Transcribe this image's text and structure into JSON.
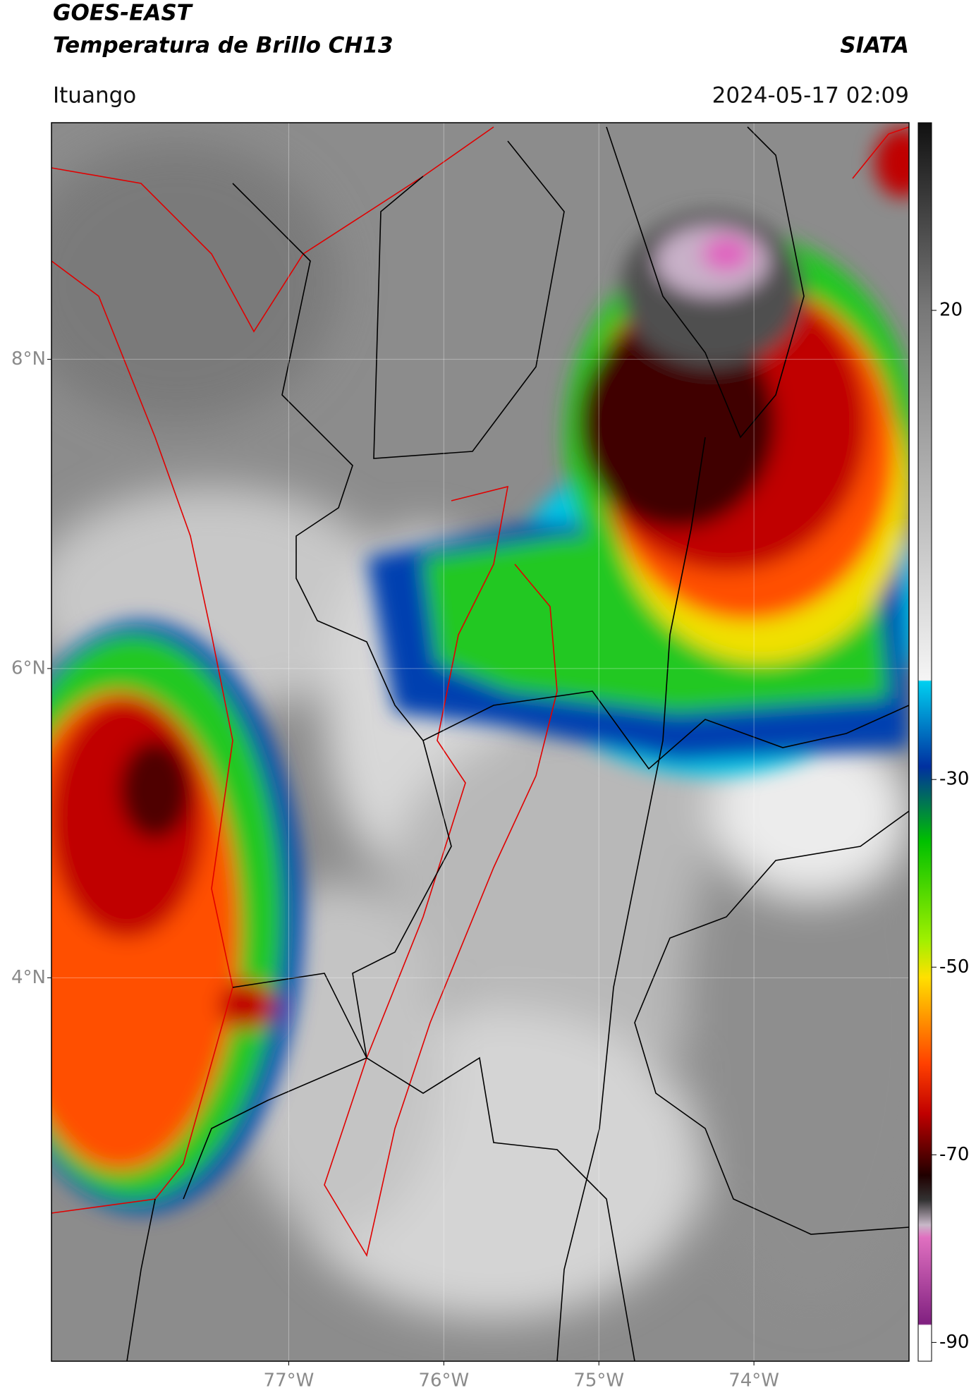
{
  "header": {
    "title": "GOES-EAST",
    "subtitle": "Temperatura de Brillo CH13",
    "source": "SIATA",
    "region": "Ituango",
    "datetime": "2024-05-17 02:09"
  },
  "map": {
    "xlim": [
      -78.53,
      -73.0
    ],
    "ylim": [
      1.52,
      9.53
    ],
    "lat_ticks": [
      {
        "value": 8,
        "label": "8°N"
      },
      {
        "value": 6,
        "label": "6°N"
      },
      {
        "value": 4,
        "label": "4°N"
      }
    ],
    "lon_ticks": [
      {
        "value": -77,
        "label": "77°W"
      },
      {
        "value": -76,
        "label": "76°W"
      },
      {
        "value": -75,
        "label": "75°W"
      },
      {
        "value": -74,
        "label": "74°W"
      }
    ]
  },
  "colorbar": {
    "ylim": [
      -92,
      40
    ],
    "yticks": [
      20,
      -30,
      -50,
      -70,
      -90
    ]
  }
}
